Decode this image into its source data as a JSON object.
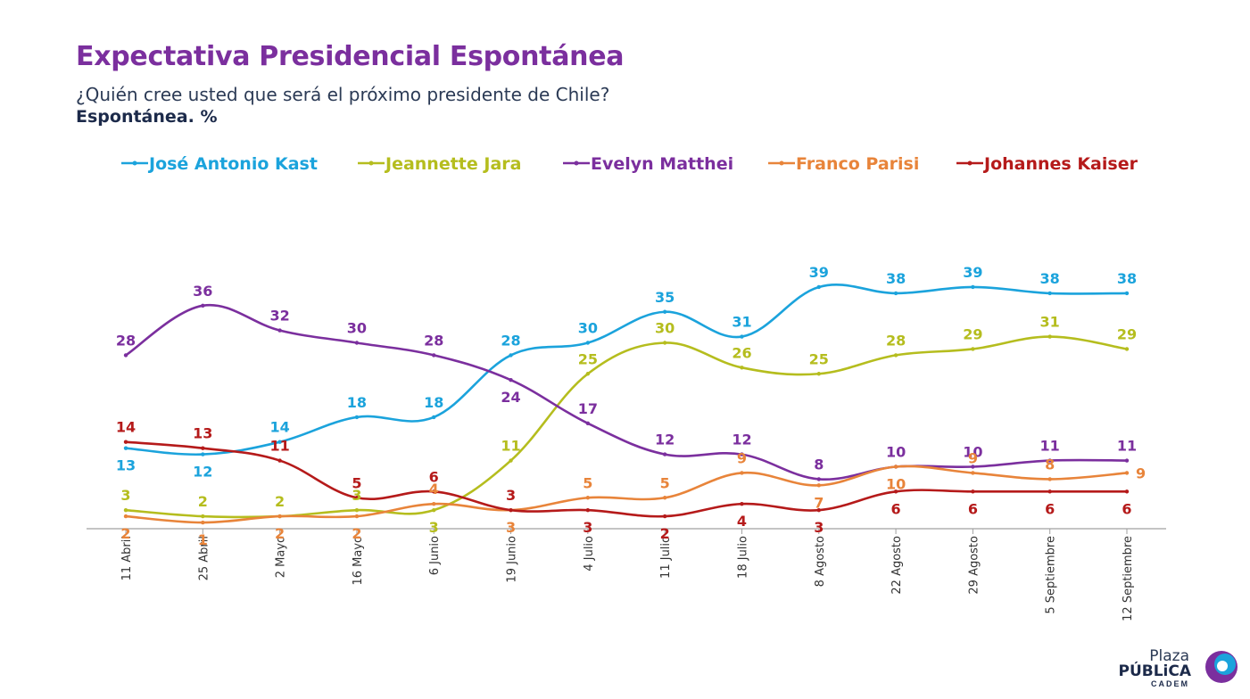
{
  "title": "Expectativa Presidencial Espontánea",
  "subtitle": "¿Quién cree usted que será el próximo presidente de Chile?",
  "unit_label": "Espontánea. %",
  "logo": {
    "line1": "Plaza",
    "line2": "PÚBLiCA",
    "line3": "CADEM"
  },
  "chart_data": {
    "type": "line",
    "categories": [
      "11 Abril",
      "25 Abril",
      "2 Mayo",
      "16 Mayo",
      "6 Junio",
      "19 Junio",
      "4 Julio",
      "11 Julio",
      "18 Julio",
      "8 Agosto",
      "22 Agosto",
      "29 Agosto",
      "5 Septiembre",
      "12 Septiembre"
    ],
    "ylim": [
      0,
      42
    ],
    "grid": false,
    "legend": "top",
    "series": [
      {
        "name": "José Antonio Kast",
        "color": "#1BA3DC",
        "values": [
          13,
          12,
          14,
          18,
          18,
          28,
          30,
          35,
          31,
          39,
          38,
          39,
          38,
          38
        ],
        "label_pos": [
          "below",
          "below",
          "above",
          "above",
          "above",
          "above",
          "above",
          "above",
          "above",
          "above",
          "above",
          "above",
          "above",
          "above"
        ]
      },
      {
        "name": "Jeannette Jara",
        "color": "#B5BD1E",
        "values": [
          3,
          2,
          2,
          3,
          3,
          11,
          25,
          30,
          26,
          25,
          28,
          29,
          31,
          29
        ],
        "label_pos": [
          "above",
          "above",
          "above",
          "above",
          "below",
          "above",
          "above",
          "above",
          "above",
          "above",
          "above",
          "above",
          "above",
          "above"
        ]
      },
      {
        "name": "Evelyn Matthei",
        "color": "#7B2F9E",
        "values": [
          28,
          36,
          32,
          30,
          28,
          24,
          17,
          12,
          12,
          8,
          10,
          10,
          11,
          11
        ],
        "label_pos": [
          "above",
          "above",
          "above",
          "above",
          "above",
          "below",
          "above",
          "above",
          "above",
          "above",
          "above",
          "above",
          "above",
          "above"
        ]
      },
      {
        "name": "Franco Parisi",
        "color": "#E8843A",
        "values": [
          2,
          1,
          2,
          2,
          4,
          3,
          5,
          5,
          9,
          7,
          10,
          9,
          8,
          9
        ],
        "label_pos": [
          "below",
          "below",
          "below",
          "below",
          "above",
          "below",
          "above",
          "above",
          "above",
          "below",
          "below",
          "above",
          "above",
          "right"
        ]
      },
      {
        "name": "Johannes Kaiser",
        "color": "#B51A1A",
        "values": [
          14,
          13,
          11,
          5,
          6,
          3,
          3,
          2,
          4,
          3,
          6,
          6,
          6,
          6
        ],
        "label_pos": [
          "above",
          "above",
          "above",
          "above",
          "above",
          "above",
          "below",
          "below",
          "below",
          "below",
          "below",
          "below",
          "below",
          "below"
        ]
      }
    ]
  }
}
